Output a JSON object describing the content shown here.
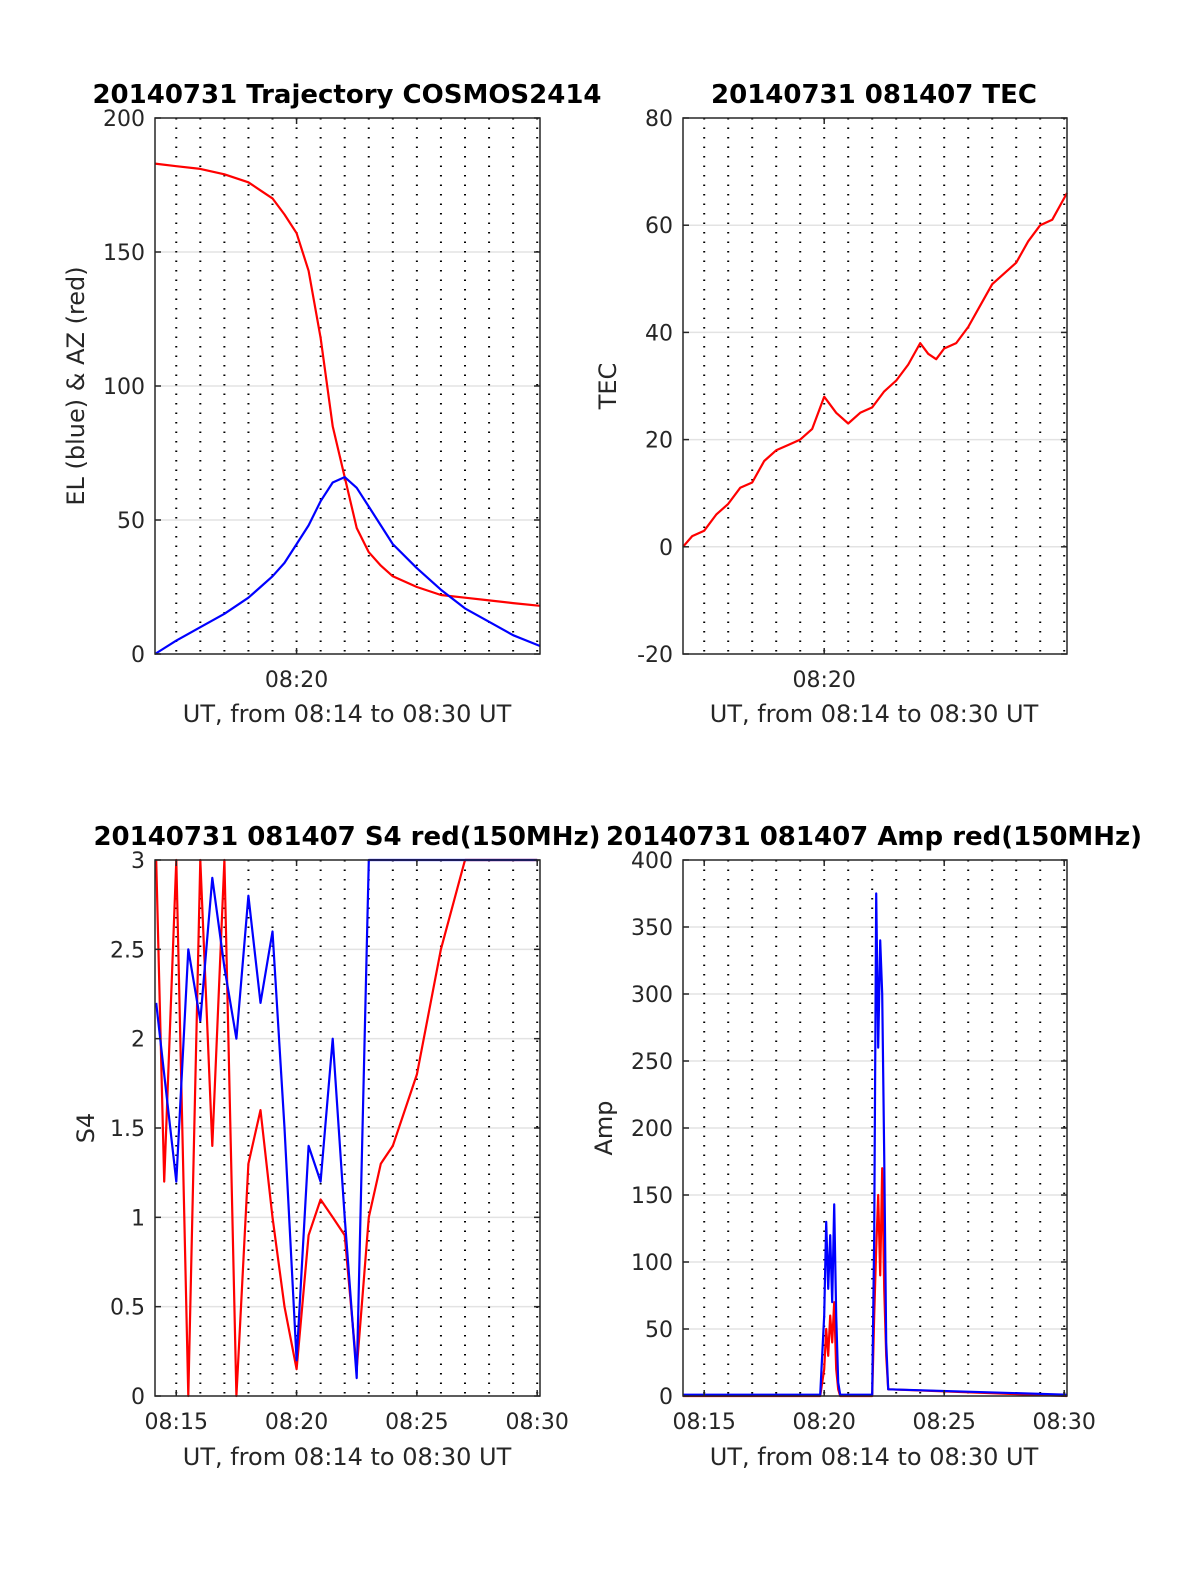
{
  "figure": {
    "panels": [
      {
        "id": "traj",
        "title": "20140731 Trajectory COSMOS2414",
        "xlabel": "UT, from 08:14 to 08:30 UT",
        "ylabel": "EL (blue) & AZ (red)"
      },
      {
        "id": "tec",
        "title": "20140731 081407 TEC",
        "xlabel": "UT, from 08:14 to 08:30 UT",
        "ylabel": "TEC"
      },
      {
        "id": "s4",
        "title": "20140731 081407 S4 red(150MHz)",
        "xlabel": "UT, from 08:14 to 08:30 UT",
        "ylabel": "S4"
      },
      {
        "id": "amp",
        "title": "20140731 081407 Amp red(150MHz)",
        "xlabel": "UT, from 08:14 to 08:30 UT",
        "ylabel": "Amp"
      }
    ]
  },
  "chart_data": [
    {
      "type": "line",
      "title": "20140731 Trajectory COSMOS2414",
      "xlabel": "UT, from 08:14 to 08:30 UT",
      "ylabel": "EL (blue) & AZ (red)",
      "xlim": [
        "08:14:07",
        "08:30:07"
      ],
      "ylim": [
        0,
        200
      ],
      "xticks": [
        "08:20"
      ],
      "yticks": [
        0,
        50,
        100,
        150,
        200
      ],
      "grid": "dotted vertical every 1 min, light horizontal",
      "series": [
        {
          "color": "#ff0000",
          "x": [
            "08:14:07",
            "08:15:00",
            "08:16:00",
            "08:17:00",
            "08:18:00",
            "08:18:30",
            "08:19:00",
            "08:19:30",
            "08:20:00",
            "08:20:30",
            "08:21:00",
            "08:21:30",
            "08:22:00",
            "08:22:30",
            "08:23:00",
            "08:23:30",
            "08:24:00",
            "08:25:00",
            "08:26:00",
            "08:27:00",
            "08:28:00",
            "08:29:00",
            "08:30:07"
          ],
          "values": [
            183,
            182,
            181,
            179,
            176,
            173,
            170,
            164,
            157,
            143,
            118,
            85,
            66,
            47,
            38,
            33,
            29,
            25,
            22,
            21,
            20,
            19,
            18
          ]
        },
        {
          "color": "#0000ff",
          "x": [
            "08:14:07",
            "08:15:00",
            "08:16:00",
            "08:17:00",
            "08:18:00",
            "08:18:30",
            "08:19:00",
            "08:19:30",
            "08:20:00",
            "08:20:30",
            "08:21:00",
            "08:21:30",
            "08:22:00",
            "08:22:30",
            "08:23:00",
            "08:23:30",
            "08:24:00",
            "08:25:00",
            "08:26:00",
            "08:27:00",
            "08:28:00",
            "08:29:00",
            "08:30:07"
          ],
          "values": [
            0,
            5,
            10,
            15,
            21,
            25,
            29,
            34,
            41,
            48,
            57,
            64,
            66,
            62,
            55,
            48,
            41,
            32,
            24,
            17,
            12,
            7,
            3
          ]
        }
      ]
    },
    {
      "type": "line",
      "title": "20140731 081407 TEC",
      "xlabel": "UT, from 08:14 to 08:30 UT",
      "ylabel": "TEC",
      "xlim": [
        "08:14:07",
        "08:30:07"
      ],
      "ylim": [
        -20,
        80
      ],
      "xticks": [
        "08:20"
      ],
      "yticks": [
        -20,
        0,
        20,
        40,
        60,
        80
      ],
      "grid": "dotted vertical every 1 min, light horizontal",
      "series": [
        {
          "color": "#ff0000",
          "x": [
            "08:14:07",
            "08:14:30",
            "08:15:00",
            "08:15:30",
            "08:16:00",
            "08:16:30",
            "08:17:00",
            "08:17:30",
            "08:18:00",
            "08:18:30",
            "08:19:00",
            "08:19:30",
            "08:20:00",
            "08:20:30",
            "08:21:00",
            "08:21:30",
            "08:22:00",
            "08:22:30",
            "08:23:00",
            "08:23:30",
            "08:24:00",
            "08:24:20",
            "08:24:40",
            "08:25:00",
            "08:25:30",
            "08:26:00",
            "08:26:30",
            "08:27:00",
            "08:27:30",
            "08:28:00",
            "08:28:30",
            "08:29:00",
            "08:29:30",
            "08:30:07"
          ],
          "values": [
            0,
            2,
            3,
            6,
            8,
            11,
            12,
            16,
            18,
            19,
            20,
            22,
            28,
            25,
            23,
            25,
            26,
            29,
            31,
            34,
            38,
            36,
            35,
            37,
            38,
            41,
            45,
            49,
            51,
            53,
            57,
            60,
            61,
            66
          ]
        }
      ]
    },
    {
      "type": "line",
      "title": "20140731 081407 S4 red(150MHz)",
      "xlabel": "UT, from 08:14 to 08:30 UT",
      "ylabel": "S4",
      "xlim": [
        "08:14:07",
        "08:30:07"
      ],
      "ylim": [
        0,
        3
      ],
      "xticks": [
        "08:15",
        "08:20",
        "08:25",
        "08:30"
      ],
      "yticks": [
        0,
        0.5,
        1,
        1.5,
        2,
        2.5,
        3
      ],
      "grid": "dotted vertical every 1 min, light horizontal",
      "series": [
        {
          "color": "#ff0000",
          "x": [
            "08:14:10",
            "08:14:30",
            "08:15:00",
            "08:15:30",
            "08:16:00",
            "08:16:30",
            "08:17:00",
            "08:17:30",
            "08:18:00",
            "08:18:30",
            "08:19:00",
            "08:19:30",
            "08:20:00",
            "08:20:30",
            "08:21:00",
            "08:21:30",
            "08:22:00",
            "08:22:30",
            "08:23:00",
            "08:23:30",
            "08:24:00",
            "08:25:00",
            "08:26:00",
            "08:27:00",
            "08:28:00",
            "08:29:00",
            "08:30:00"
          ],
          "values": [
            3,
            1.2,
            3,
            0,
            3,
            1.4,
            3,
            0,
            1.3,
            1.6,
            1.0,
            0.5,
            0.15,
            0.9,
            1.1,
            1.0,
            0.9,
            0.15,
            1.0,
            1.3,
            1.4,
            1.8,
            2.5,
            3,
            3,
            3,
            3
          ]
        },
        {
          "color": "#0000ff",
          "x": [
            "08:14:10",
            "08:14:30",
            "08:15:00",
            "08:15:30",
            "08:16:00",
            "08:16:30",
            "08:17:00",
            "08:17:30",
            "08:18:00",
            "08:18:30",
            "08:19:00",
            "08:19:30",
            "08:20:00",
            "08:20:30",
            "08:21:00",
            "08:21:30",
            "08:22:00",
            "08:22:30",
            "08:23:00",
            "08:23:30",
            "08:24:00",
            "08:25:00",
            "08:26:00",
            "08:27:00",
            "08:28:00",
            "08:29:00",
            "08:30:00"
          ],
          "values": [
            2.2,
            1.8,
            1.2,
            2.5,
            2.1,
            2.9,
            2.4,
            2.0,
            2.8,
            2.2,
            2.6,
            1.5,
            0.2,
            1.4,
            1.2,
            2.0,
            1.0,
            0.1,
            3,
            3,
            3,
            3,
            3,
            3,
            3,
            3,
            3
          ]
        }
      ]
    },
    {
      "type": "line",
      "title": "20140731 081407 Amp red(150MHz)",
      "xlabel": "UT, from 08:14 to 08:30 UT",
      "ylabel": "Amp",
      "xlim": [
        "08:14:07",
        "08:30:07"
      ],
      "ylim": [
        0,
        400
      ],
      "xticks": [
        "08:15",
        "08:20",
        "08:25",
        "08:30"
      ],
      "yticks": [
        0,
        50,
        100,
        150,
        200,
        250,
        300,
        350,
        400
      ],
      "grid": "dotted vertical every 1 min, light horizontal",
      "series": [
        {
          "color": "#ff0000",
          "x": [
            "08:14:07",
            "08:19:50",
            "08:20:00",
            "08:20:05",
            "08:20:10",
            "08:20:15",
            "08:20:20",
            "08:20:25",
            "08:20:30",
            "08:20:35",
            "08:20:40",
            "08:22:00",
            "08:22:05",
            "08:22:10",
            "08:22:15",
            "08:22:20",
            "08:22:25",
            "08:22:30",
            "08:22:35",
            "08:22:40",
            "08:30:07"
          ],
          "values": [
            0,
            0,
            20,
            50,
            30,
            60,
            40,
            70,
            20,
            5,
            0,
            0,
            60,
            110,
            150,
            90,
            170,
            80,
            30,
            5,
            0
          ]
        },
        {
          "color": "#0000ff",
          "x": [
            "08:14:07",
            "08:19:50",
            "08:20:00",
            "08:20:05",
            "08:20:10",
            "08:20:15",
            "08:20:20",
            "08:20:25",
            "08:20:30",
            "08:20:35",
            "08:20:40",
            "08:22:00",
            "08:22:05",
            "08:22:10",
            "08:22:15",
            "08:22:20",
            "08:22:25",
            "08:22:30",
            "08:22:35",
            "08:22:40",
            "08:30:07"
          ],
          "values": [
            1,
            1,
            60,
            130,
            80,
            120,
            70,
            143,
            60,
            10,
            1,
            1,
            120,
            375,
            260,
            340,
            300,
            180,
            40,
            5,
            1
          ]
        }
      ]
    }
  ]
}
